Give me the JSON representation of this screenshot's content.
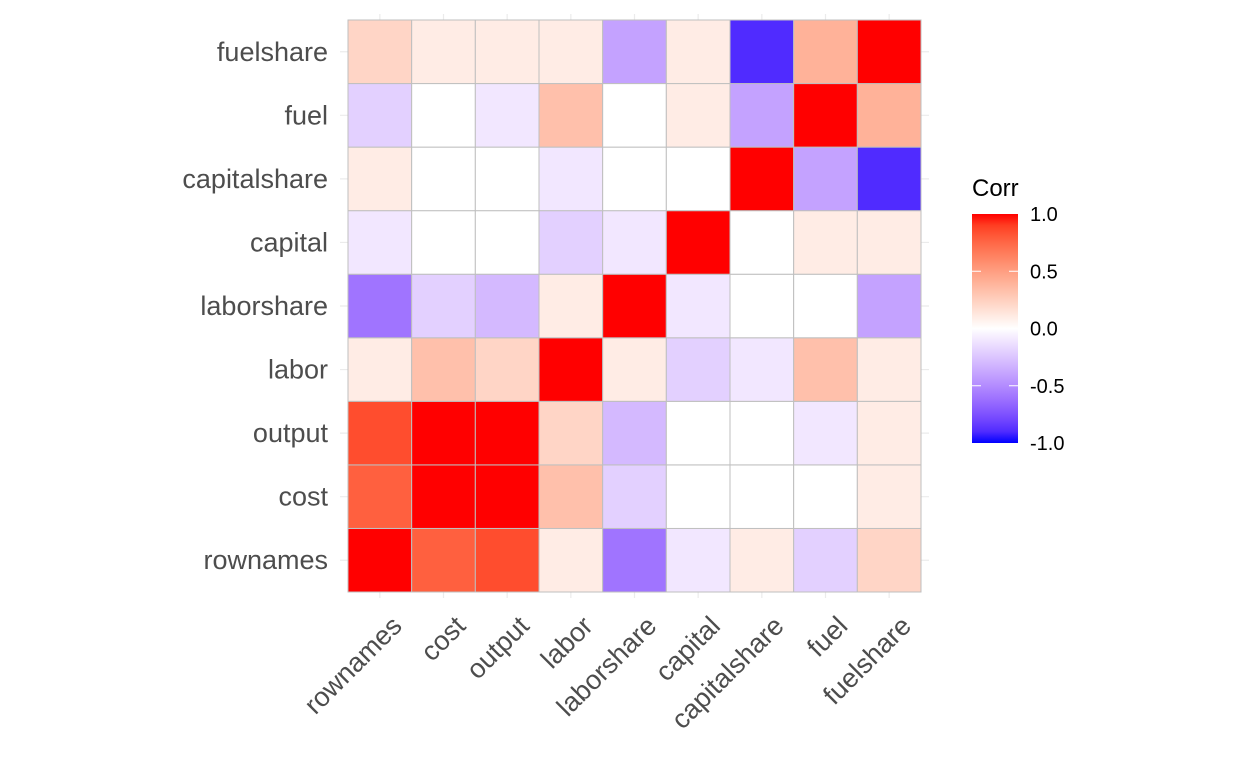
{
  "chart_data": {
    "type": "heatmap",
    "title": "",
    "xlabel": "",
    "ylabel": "",
    "variables": [
      "rownames",
      "cost",
      "output",
      "labor",
      "laborshare",
      "capital",
      "capitalshare",
      "fuel",
      "fuelshare"
    ],
    "x_tick_labels": [
      "rownames",
      "cost",
      "output",
      "labor",
      "laborshare",
      "capital",
      "capitalshare",
      "fuel",
      "fuelshare"
    ],
    "y_tick_labels": [
      "rownames",
      "cost",
      "output",
      "labor",
      "laborshare",
      "capital",
      "capitalshare",
      "fuel",
      "fuelshare"
    ],
    "matrix": [
      [
        1.0,
        0.78,
        0.85,
        0.1,
        -0.6,
        -0.1,
        0.1,
        -0.2,
        0.22
      ],
      [
        0.78,
        1.0,
        1.0,
        0.33,
        -0.2,
        0.0,
        0.0,
        0.0,
        0.1
      ],
      [
        0.85,
        1.0,
        1.0,
        0.22,
        -0.3,
        0.0,
        0.0,
        -0.1,
        0.1
      ],
      [
        0.1,
        0.33,
        0.22,
        1.0,
        0.1,
        -0.2,
        -0.1,
        0.33,
        0.1
      ],
      [
        -0.6,
        -0.2,
        -0.3,
        0.1,
        1.0,
        -0.1,
        0.0,
        0.0,
        -0.4
      ],
      [
        -0.1,
        0.0,
        0.0,
        -0.2,
        -0.1,
        1.0,
        0.0,
        0.1,
        0.1
      ],
      [
        0.1,
        0.0,
        0.0,
        -0.1,
        0.0,
        0.0,
        1.0,
        -0.4,
        -0.9
      ],
      [
        -0.2,
        0.0,
        -0.1,
        0.33,
        0.0,
        0.1,
        -0.4,
        1.0,
        0.4
      ],
      [
        0.22,
        0.1,
        0.1,
        0.1,
        -0.4,
        0.1,
        -0.9,
        0.4,
        1.0
      ]
    ],
    "color_scale": {
      "low": "#0000FF",
      "mid": "#FFFFFF",
      "high": "#FF0000",
      "limits": [
        -1,
        1
      ]
    },
    "legend": {
      "title": "Corr",
      "ticks": [
        1.0,
        0.5,
        0.0,
        -0.5,
        -1.0
      ],
      "tick_labels": [
        "1.0",
        "0.5",
        "0.0",
        "-0.5",
        "-1.0"
      ],
      "position": "right"
    },
    "grid": true,
    "cell_border_color": "#bfbfbf"
  }
}
